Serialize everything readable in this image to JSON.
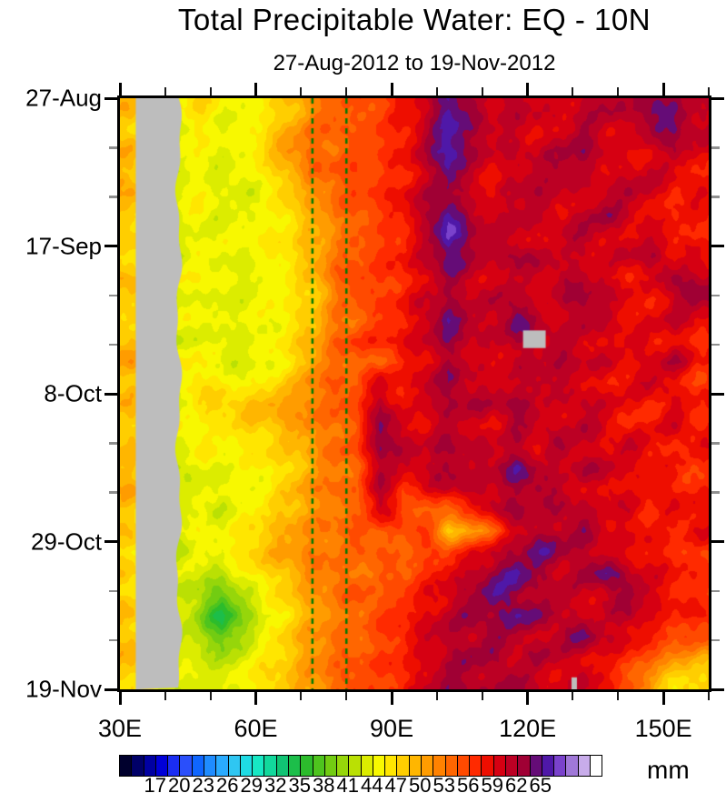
{
  "chart_data": {
    "type": "heatmap",
    "title": "Total Precipitable Water: EQ - 10N",
    "subtitle": "27-Aug-2012 to 19-Nov-2012",
    "unit": "mm",
    "x_axis": {
      "lon_min": 30,
      "lon_max": 160,
      "ticks": [
        {
          "lon": 30,
          "label": "30E"
        },
        {
          "lon": 60,
          "label": "60E"
        },
        {
          "lon": 90,
          "label": "90E"
        },
        {
          "lon": 120,
          "label": "120E"
        },
        {
          "lon": 150,
          "label": "150E"
        }
      ],
      "minor_lons": [
        40,
        50,
        70,
        80,
        100,
        110,
        130,
        140,
        160
      ]
    },
    "y_axis": {
      "day_min": 0,
      "day_max": 84,
      "ticks": [
        {
          "day": 0,
          "label": "27-Aug"
        },
        {
          "day": 21,
          "label": "17-Sep"
        },
        {
          "day": 42,
          "label": "8-Oct"
        },
        {
          "day": 63,
          "label": "29-Oct"
        },
        {
          "day": 84,
          "label": "19-Nov"
        }
      ],
      "minor_days": [
        7,
        14,
        28,
        35,
        49,
        56,
        70,
        77
      ]
    },
    "colorbar": {
      "unit": "mm",
      "min_value": 12.5,
      "step": 1.5,
      "tick_labels": [
        17,
        20,
        23,
        26,
        29,
        32,
        35,
        38,
        41,
        44,
        47,
        50,
        53,
        56,
        59,
        62,
        65
      ],
      "cell_colors": [
        "#00002d",
        "#000068",
        "#0000a2",
        "#0000d8",
        "#1a2df2",
        "#2a4ffb",
        "#0f66ff",
        "#1f8cff",
        "#2aabff",
        "#2fc6f2",
        "#1fdbe4",
        "#17e8c4",
        "#12d89c",
        "#10c474",
        "#1cbe4a",
        "#2cbc2c",
        "#4ec41e",
        "#72cc12",
        "#96d60a",
        "#bae004",
        "#dcec00",
        "#f8f800",
        "#ffe600",
        "#ffce00",
        "#ffb600",
        "#ff9c00",
        "#ff8200",
        "#ff6600",
        "#ff4a00",
        "#ff2a00",
        "#ee0e00",
        "#d60012",
        "#bc0024",
        "#a00034",
        "#650c77",
        "#4f18a8",
        "#7a42cc",
        "#a078d8",
        "#c8acea",
        "#ffffff"
      ]
    },
    "reference_lines": {
      "color": "#007a00",
      "style": "dashed",
      "longitudes": [
        72.5,
        80
      ]
    },
    "missing": {
      "color": "#bdbdbd",
      "regions": [
        {
          "lon_min": 33.5,
          "lon_max": 43,
          "day_min": 0,
          "day_max": 84,
          "wavy": true
        },
        {
          "lon_min": 119,
          "lon_max": 124,
          "day_min": 33,
          "day_max": 35.5
        },
        {
          "lon_min": 129.7,
          "lon_max": 130.9,
          "day_min": 82.3,
          "day_max": 84
        }
      ]
    },
    "grid": {
      "lon_centers": [
        32.5,
        37.5,
        42.5,
        47.5,
        52.5,
        57.5,
        62.5,
        67.5,
        72.5,
        77.5,
        82.5,
        87.5,
        92.5,
        97.5,
        102.5,
        107.5,
        112.5,
        117.5,
        122.5,
        127.5,
        132.5,
        137.5,
        142.5,
        147.5,
        152.5,
        157.5
      ],
      "row_days": [
        1.5,
        4.5,
        7.5,
        10.5,
        13.5,
        16.5,
        19.5,
        22.5,
        25.5,
        28.5,
        31.5,
        34.5,
        37.5,
        40.5,
        43.5,
        46.5,
        49.5,
        52.5,
        55.5,
        58.5,
        61.5,
        64.5,
        67.5,
        70.5,
        73.5,
        76.5,
        79.5,
        82.5
      ],
      "values": [
        [
          49,
          null,
          45,
          47,
          45,
          44,
          46,
          48,
          52,
          54,
          55,
          56,
          58,
          60,
          66,
          62,
          60,
          62,
          60,
          59,
          61,
          62,
          61,
          64,
          63,
          60
        ],
        [
          47,
          null,
          43,
          46,
          44,
          44,
          47,
          50,
          53,
          55,
          54,
          56,
          57,
          61,
          66,
          63,
          61,
          60,
          59,
          60,
          62,
          60,
          60,
          63,
          64,
          61
        ],
        [
          50,
          null,
          46,
          45,
          44,
          45,
          48,
          52,
          54,
          53,
          55,
          57,
          58,
          62,
          67,
          62,
          60,
          61,
          60,
          62,
          63,
          60,
          58,
          59,
          62,
          59
        ],
        [
          48,
          null,
          42,
          44,
          43,
          44,
          46,
          49,
          53,
          55,
          56,
          55,
          57,
          60,
          65,
          61,
          59,
          60,
          61,
          63,
          61,
          59,
          60,
          61,
          59,
          57
        ],
        [
          51,
          null,
          45,
          46,
          44,
          43,
          45,
          48,
          51,
          54,
          55,
          57,
          59,
          61,
          63,
          60,
          58,
          61,
          62,
          60,
          59,
          61,
          62,
          60,
          58,
          59
        ],
        [
          47,
          null,
          43,
          45,
          43,
          44,
          44,
          47,
          50,
          53,
          55,
          56,
          58,
          62,
          66,
          61,
          60,
          62,
          60,
          59,
          61,
          63,
          60,
          58,
          57,
          58
        ],
        [
          49,
          null,
          44,
          44,
          44,
          45,
          46,
          46,
          49,
          52,
          54,
          55,
          57,
          60,
          67,
          63,
          61,
          60,
          59,
          61,
          62,
          60,
          59,
          60,
          59,
          57
        ],
        [
          46,
          null,
          41,
          45,
          44,
          44,
          45,
          47,
          50,
          53,
          55,
          57,
          58,
          61,
          65,
          62,
          60,
          63,
          61,
          60,
          60,
          59,
          61,
          62,
          58,
          59
        ],
        [
          50,
          null,
          45,
          46,
          44,
          43,
          44,
          46,
          48,
          54,
          56,
          55,
          57,
          59,
          63,
          61,
          59,
          61,
          60,
          62,
          61,
          60,
          58,
          59,
          63,
          61
        ],
        [
          48,
          null,
          43,
          44,
          43,
          44,
          45,
          46,
          48,
          52,
          55,
          56,
          58,
          60,
          62,
          60,
          61,
          62,
          59,
          61,
          63,
          61,
          59,
          57,
          61,
          63
        ],
        [
          47,
          null,
          44,
          45,
          44,
          44,
          44,
          46,
          48,
          53,
          54,
          56,
          57,
          61,
          65,
          62,
          60,
          65,
          61,
          60,
          62,
          60,
          58,
          59,
          61,
          59
        ],
        [
          49,
          null,
          42,
          44,
          43,
          44,
          45,
          46,
          50,
          54,
          56,
          57,
          59,
          60,
          63,
          61,
          60,
          62,
          null,
          61,
          60,
          59,
          60,
          58,
          59,
          57
        ],
        [
          51,
          null,
          45,
          46,
          44,
          43,
          44,
          46,
          51,
          53,
          55,
          54,
          57,
          59,
          62,
          60,
          59,
          61,
          60,
          62,
          61,
          60,
          58,
          60,
          62,
          58
        ],
        [
          48,
          null,
          44,
          47,
          45,
          44,
          46,
          48,
          52,
          55,
          54,
          60,
          58,
          61,
          63,
          61,
          60,
          60,
          62,
          61,
          59,
          58,
          59,
          61,
          58,
          56
        ],
        [
          50,
          null,
          43,
          47,
          48,
          49,
          50,
          51,
          53,
          54,
          56,
          62,
          57,
          60,
          62,
          62,
          61,
          63,
          60,
          59,
          61,
          60,
          58,
          57,
          59,
          58
        ],
        [
          47,
          null,
          45,
          45,
          46,
          47,
          48,
          50,
          52,
          53,
          55,
          64,
          60,
          59,
          61,
          60,
          59,
          62,
          61,
          60,
          62,
          59,
          57,
          58,
          60,
          57
        ],
        [
          49,
          null,
          44,
          46,
          45,
          46,
          47,
          48,
          51,
          54,
          55,
          64,
          61,
          60,
          63,
          61,
          60,
          61,
          59,
          62,
          60,
          59,
          61,
          59,
          57,
          59
        ],
        [
          48,
          null,
          42,
          44,
          44,
          45,
          46,
          47,
          50,
          53,
          54,
          62,
          60,
          61,
          62,
          60,
          62,
          65,
          61,
          60,
          62,
          61,
          59,
          58,
          57,
          56
        ],
        [
          51,
          null,
          45,
          43,
          44,
          44,
          45,
          48,
          52,
          54,
          53,
          63,
          56,
          59,
          61,
          62,
          60,
          62,
          63,
          61,
          59,
          60,
          58,
          59,
          58,
          57
        ],
        [
          47,
          null,
          43,
          44,
          43,
          45,
          47,
          49,
          51,
          52,
          54,
          61,
          55,
          54,
          54,
          56,
          61,
          63,
          60,
          62,
          61,
          59,
          60,
          57,
          59,
          58
        ],
        [
          49,
          null,
          44,
          45,
          44,
          46,
          48,
          50,
          52,
          54,
          55,
          54,
          56,
          57,
          48,
          51,
          54,
          60,
          62,
          61,
          63,
          60,
          59,
          58,
          57,
          59
        ],
        [
          46,
          null,
          42,
          44,
          45,
          47,
          49,
          51,
          53,
          52,
          54,
          55,
          53,
          55,
          56,
          58,
          60,
          62,
          65,
          63,
          61,
          60,
          58,
          59,
          57,
          56
        ],
        [
          48,
          null,
          44,
          43,
          42,
          45,
          47,
          49,
          52,
          54,
          53,
          54,
          55,
          57,
          59,
          61,
          63,
          66,
          62,
          60,
          62,
          65,
          61,
          59,
          58,
          57
        ],
        [
          47,
          null,
          43,
          41,
          38,
          42,
          45,
          48,
          51,
          53,
          55,
          54,
          56,
          58,
          60,
          62,
          65,
          63,
          61,
          62,
          60,
          61,
          63,
          60,
          58,
          56
        ],
        [
          49,
          null,
          44,
          40,
          34,
          40,
          44,
          47,
          50,
          52,
          54,
          56,
          57,
          59,
          61,
          63,
          62,
          65,
          63,
          61,
          59,
          60,
          62,
          59,
          57,
          58
        ],
        [
          48,
          null,
          42,
          42,
          37,
          41,
          45,
          48,
          51,
          54,
          53,
          55,
          58,
          60,
          62,
          61,
          63,
          62,
          60,
          62,
          65,
          61,
          59,
          57,
          56,
          55
        ],
        [
          50,
          null,
          44,
          43,
          41,
          44,
          46,
          48,
          52,
          53,
          55,
          56,
          57,
          59,
          61,
          63,
          62,
          60,
          62,
          61,
          59,
          58,
          57,
          55,
          52,
          50
        ],
        [
          47,
          null,
          43,
          44,
          43,
          45,
          47,
          49,
          51,
          54,
          56,
          55,
          58,
          60,
          63,
          62,
          61,
          63,
          60,
          59,
          61,
          58,
          55,
          50,
          46,
          47
        ]
      ]
    }
  }
}
